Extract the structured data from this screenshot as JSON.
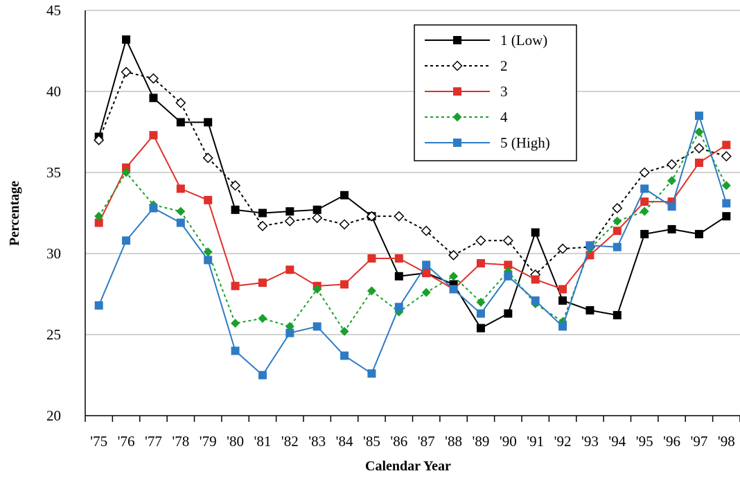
{
  "chart_data": {
    "type": "line",
    "title": "",
    "xlabel": "Calendar Year",
    "ylabel": "Percentage",
    "ylim": [
      20,
      45
    ],
    "yticks": [
      "20",
      "25",
      "30",
      "35",
      "40",
      "45"
    ],
    "grid": "horizontal",
    "legend_position": "top-right",
    "categories": [
      "'75",
      "'76",
      "'77",
      "'78",
      "'79",
      "'80",
      "'81",
      "'82",
      "'83",
      "'84",
      "'85",
      "'86",
      "'87",
      "'88",
      "'89",
      "'90",
      "'91",
      "'92",
      "'93",
      "'94",
      "'95",
      "'96",
      "'97",
      "'98"
    ],
    "series": [
      {
        "name": "1 (Low)",
        "color": "#000000",
        "line_style": "solid",
        "marker": "square-filled",
        "values": [
          37.2,
          43.2,
          39.6,
          38.1,
          38.1,
          32.7,
          32.5,
          32.6,
          32.7,
          33.6,
          32.3,
          28.6,
          28.8,
          28.1,
          25.4,
          26.3,
          31.3,
          27.1,
          26.5,
          26.2,
          31.2,
          31.5,
          31.2,
          32.3
        ]
      },
      {
        "name": "2",
        "color": "#000000",
        "line_style": "dotted",
        "marker": "diamond-open",
        "values": [
          37.0,
          41.2,
          40.8,
          39.3,
          35.9,
          34.2,
          31.7,
          32.0,
          32.2,
          31.8,
          32.3,
          32.3,
          31.4,
          29.9,
          30.8,
          30.8,
          28.7,
          30.3,
          30.4,
          32.8,
          35.0,
          35.5,
          36.5,
          36.0
        ]
      },
      {
        "name": "3",
        "color": "#e0302a",
        "line_style": "solid",
        "marker": "square-filled",
        "values": [
          31.9,
          35.3,
          37.3,
          34.0,
          33.3,
          28.0,
          28.2,
          29.0,
          28.0,
          28.1,
          29.7,
          29.7,
          28.8,
          27.8,
          29.4,
          29.3,
          28.4,
          27.8,
          29.9,
          31.4,
          33.2,
          33.2,
          35.6,
          36.7
        ]
      },
      {
        "name": "4",
        "color": "#1aa02c",
        "line_style": "dotted",
        "marker": "diamond-filled",
        "values": [
          32.3,
          35.0,
          33.0,
          32.6,
          30.1,
          25.7,
          26.0,
          25.5,
          27.8,
          25.2,
          27.7,
          26.4,
          27.6,
          28.6,
          27.0,
          28.9,
          26.9,
          25.8,
          30.3,
          32.0,
          32.6,
          34.5,
          37.5,
          34.2
        ]
      },
      {
        "name": "5 (High)",
        "color": "#2e7bc4",
        "line_style": "solid",
        "marker": "square-filled",
        "values": [
          26.8,
          30.8,
          32.8,
          31.9,
          29.6,
          24.0,
          22.5,
          25.1,
          25.5,
          23.7,
          22.6,
          26.7,
          29.3,
          27.8,
          26.3,
          28.6,
          27.1,
          25.5,
          30.5,
          30.4,
          34.0,
          32.9,
          38.5,
          33.1
        ]
      }
    ]
  }
}
